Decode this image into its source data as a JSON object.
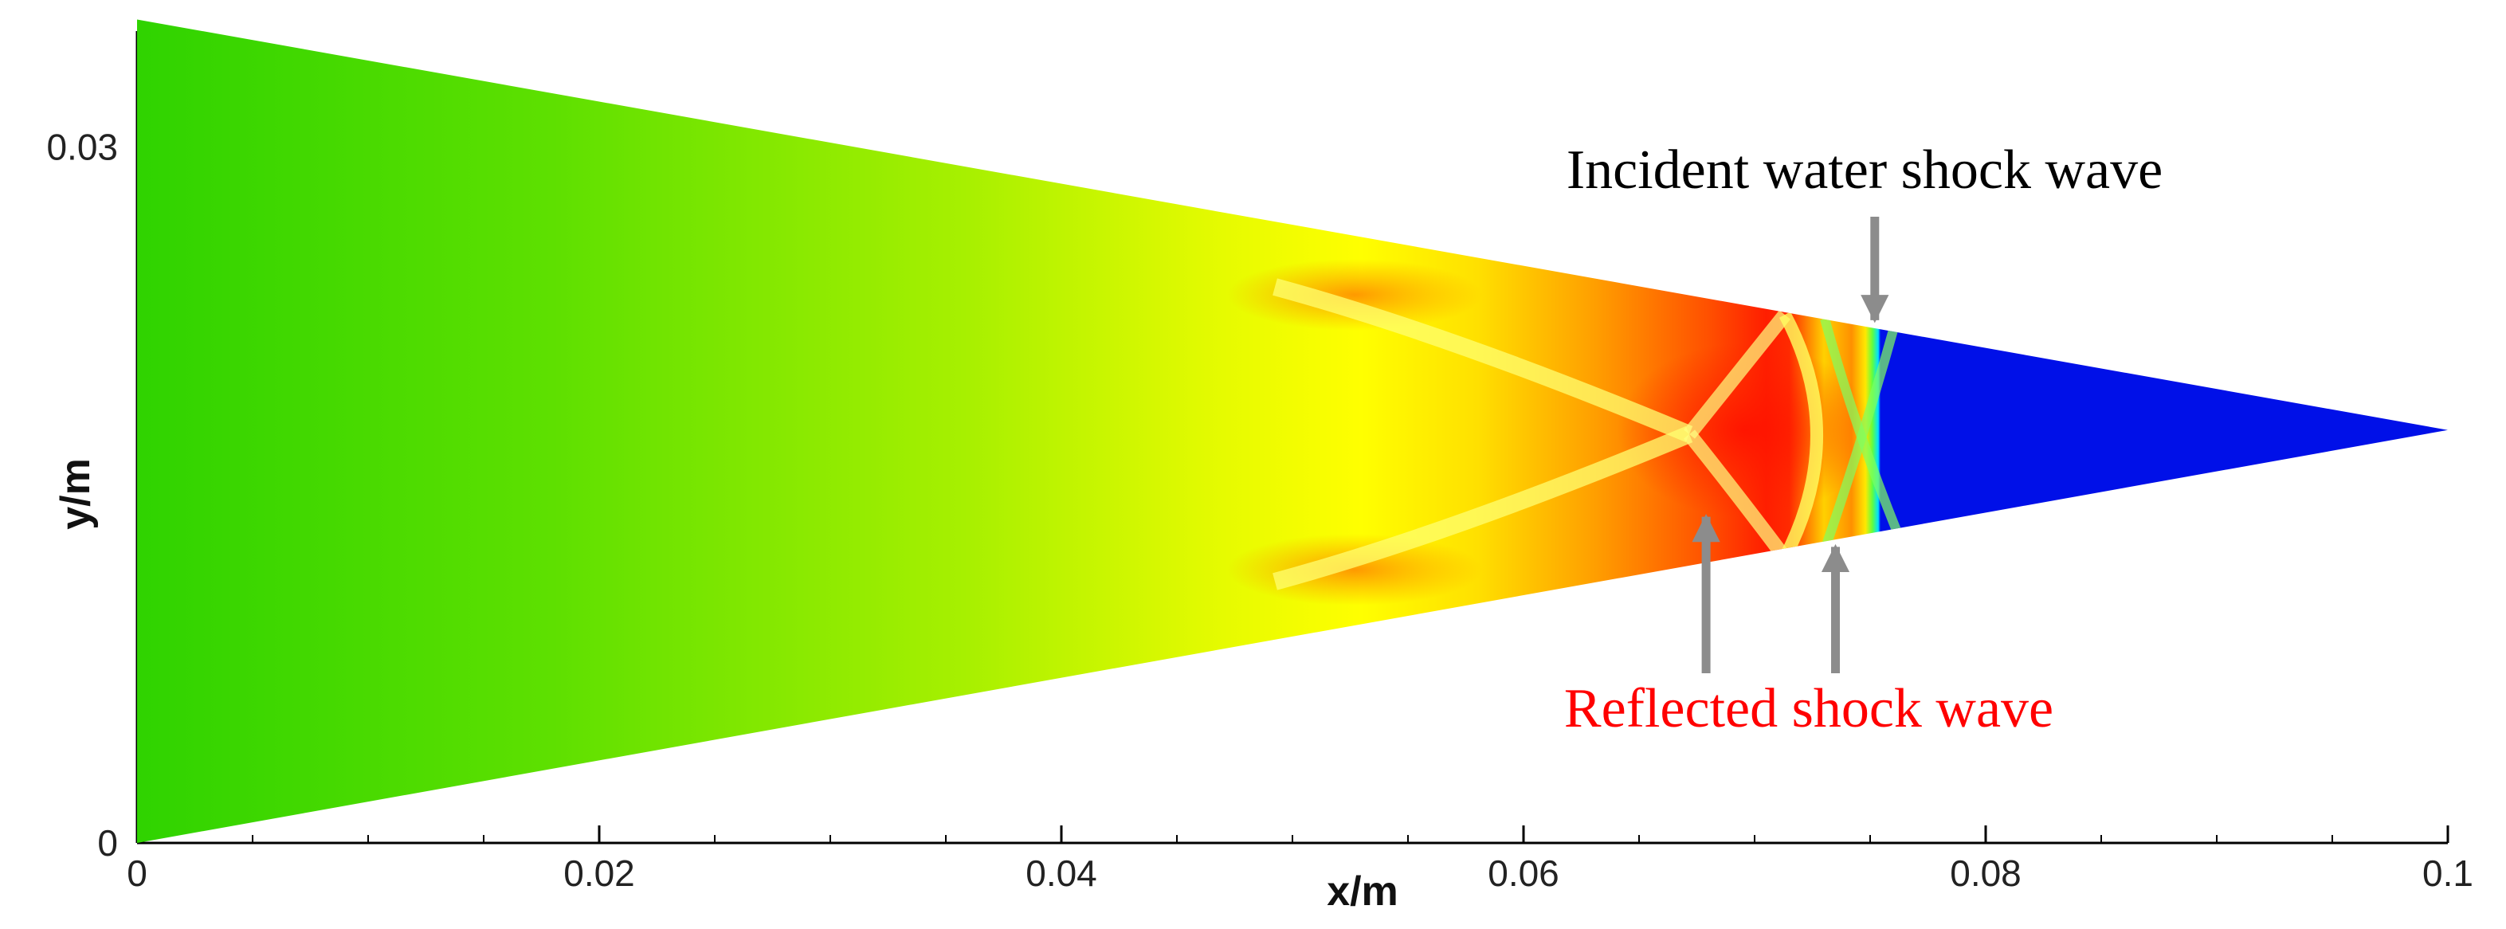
{
  "chart_data": {
    "type": "heatmap",
    "xlabel": "x/m",
    "ylabel": "y/m",
    "xlim": [
      0,
      0.1
    ],
    "ylim": [
      0,
      0.035
    ],
    "x_ticks": [
      {
        "value": 0,
        "label": "0"
      },
      {
        "value": 0.02,
        "label": "0.02"
      },
      {
        "value": 0.04,
        "label": "0.04"
      },
      {
        "value": 0.06,
        "label": "0.06"
      },
      {
        "value": 0.08,
        "label": "0.08"
      },
      {
        "value": 0.1,
        "label": "0.1"
      }
    ],
    "y_ticks": [
      {
        "value": 0,
        "label": "0"
      },
      {
        "value": 0.03,
        "label": "0.03"
      }
    ],
    "domain": {
      "shape": "wedge",
      "left_x": 0,
      "left_top_y": 0.0355,
      "left_bottom_y": 0,
      "apex_x": 0.1,
      "apex_y": 0.0178
    },
    "features": {
      "incident_shock_x": 0.0752,
      "reflected_shock_x": [
        0.0665,
        0.0735
      ],
      "colors": {
        "far_field": "#3ad400",
        "mid": "#ffff00",
        "compressed": "#ff1a00",
        "undisturbed_water": "#0010e8"
      }
    },
    "annotations": [
      {
        "text": "Incident water shock wave",
        "color": "#000000",
        "arrow_to": {
          "x": 0.0752,
          "y": 0.0224
        }
      },
      {
        "text": "Reflected shock wave",
        "color": "#ff0000",
        "arrow_to": [
          {
            "x": 0.0679,
            "y": 0.0142
          },
          {
            "x": 0.0735,
            "y": 0.0129
          }
        ]
      }
    ]
  }
}
